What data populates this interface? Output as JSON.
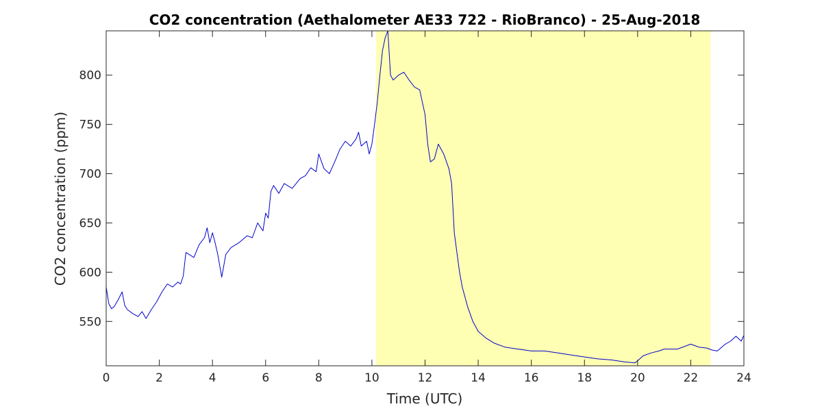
{
  "chart_data": {
    "type": "line",
    "title": "CO2 concentration (Aethalometer AE33 722 - RioBranco) - 25-Aug-2018",
    "xlabel": "Time (UTC)",
    "ylabel": "CO2 concentration (ppm)",
    "xlim": [
      0,
      24
    ],
    "ylim": [
      505,
      845
    ],
    "xticks": [
      0,
      2,
      4,
      6,
      8,
      10,
      12,
      14,
      16,
      18,
      20,
      22,
      24
    ],
    "yticks": [
      550,
      600,
      650,
      700,
      750,
      800
    ],
    "grid": false,
    "legend": "none",
    "daylight_shading": {
      "x_start": 10.15,
      "x_end": 22.75,
      "color": "#ffffb4"
    },
    "series": [
      {
        "color": "#0000cc",
        "x": [
          0,
          0.1,
          0.2,
          0.3,
          0.45,
          0.6,
          0.7,
          0.8,
          1.0,
          1.2,
          1.35,
          1.5,
          1.7,
          1.9,
          2.1,
          2.3,
          2.5,
          2.7,
          2.8,
          2.9,
          3.0,
          3.3,
          3.5,
          3.7,
          3.8,
          3.9,
          4.0,
          4.1,
          4.2,
          4.35,
          4.5,
          4.7,
          5.0,
          5.3,
          5.5,
          5.7,
          5.9,
          6.0,
          6.1,
          6.2,
          6.3,
          6.5,
          6.7,
          7.0,
          7.3,
          7.5,
          7.7,
          7.9,
          8.0,
          8.2,
          8.4,
          8.6,
          8.8,
          9.0,
          9.2,
          9.4,
          9.5,
          9.6,
          9.8,
          9.9,
          10.0,
          10.1,
          10.2,
          10.3,
          10.4,
          10.5,
          10.6,
          10.7,
          10.8,
          11.0,
          11.2,
          11.4,
          11.6,
          11.8,
          12.0,
          12.1,
          12.2,
          12.35,
          12.5,
          12.7,
          12.9,
          13.0,
          13.1,
          13.2,
          13.3,
          13.4,
          13.5,
          13.6,
          13.8,
          14.0,
          14.3,
          14.6,
          15.0,
          15.5,
          16.0,
          16.5,
          17.0,
          17.5,
          18.0,
          18.5,
          19.0,
          19.5,
          19.9,
          20.0,
          20.2,
          20.5,
          20.8,
          21.0,
          21.5,
          22.0,
          22.3,
          22.6,
          22.8,
          23.0,
          23.3,
          23.5,
          23.7,
          23.9,
          24.0
        ],
        "y": [
          585,
          568,
          563,
          565,
          572,
          580,
          566,
          562,
          558,
          555,
          560,
          553,
          562,
          570,
          580,
          588,
          585,
          590,
          588,
          596,
          620,
          615,
          628,
          635,
          645,
          630,
          640,
          630,
          618,
          595,
          618,
          625,
          630,
          637,
          635,
          650,
          642,
          660,
          655,
          682,
          688,
          680,
          690,
          685,
          695,
          698,
          706,
          702,
          720,
          705,
          700,
          712,
          725,
          733,
          728,
          735,
          742,
          728,
          733,
          720,
          730,
          750,
          772,
          800,
          825,
          838,
          845,
          800,
          795,
          800,
          803,
          795,
          788,
          785,
          760,
          730,
          712,
          715,
          730,
          720,
          705,
          690,
          640,
          620,
          600,
          585,
          575,
          565,
          550,
          540,
          533,
          528,
          524,
          522,
          520,
          520,
          518,
          516,
          514,
          512,
          511,
          509,
          508,
          510,
          515,
          518,
          520,
          522,
          522,
          527,
          524,
          523,
          521,
          520,
          527,
          530,
          535,
          530,
          536
        ]
      }
    ]
  }
}
